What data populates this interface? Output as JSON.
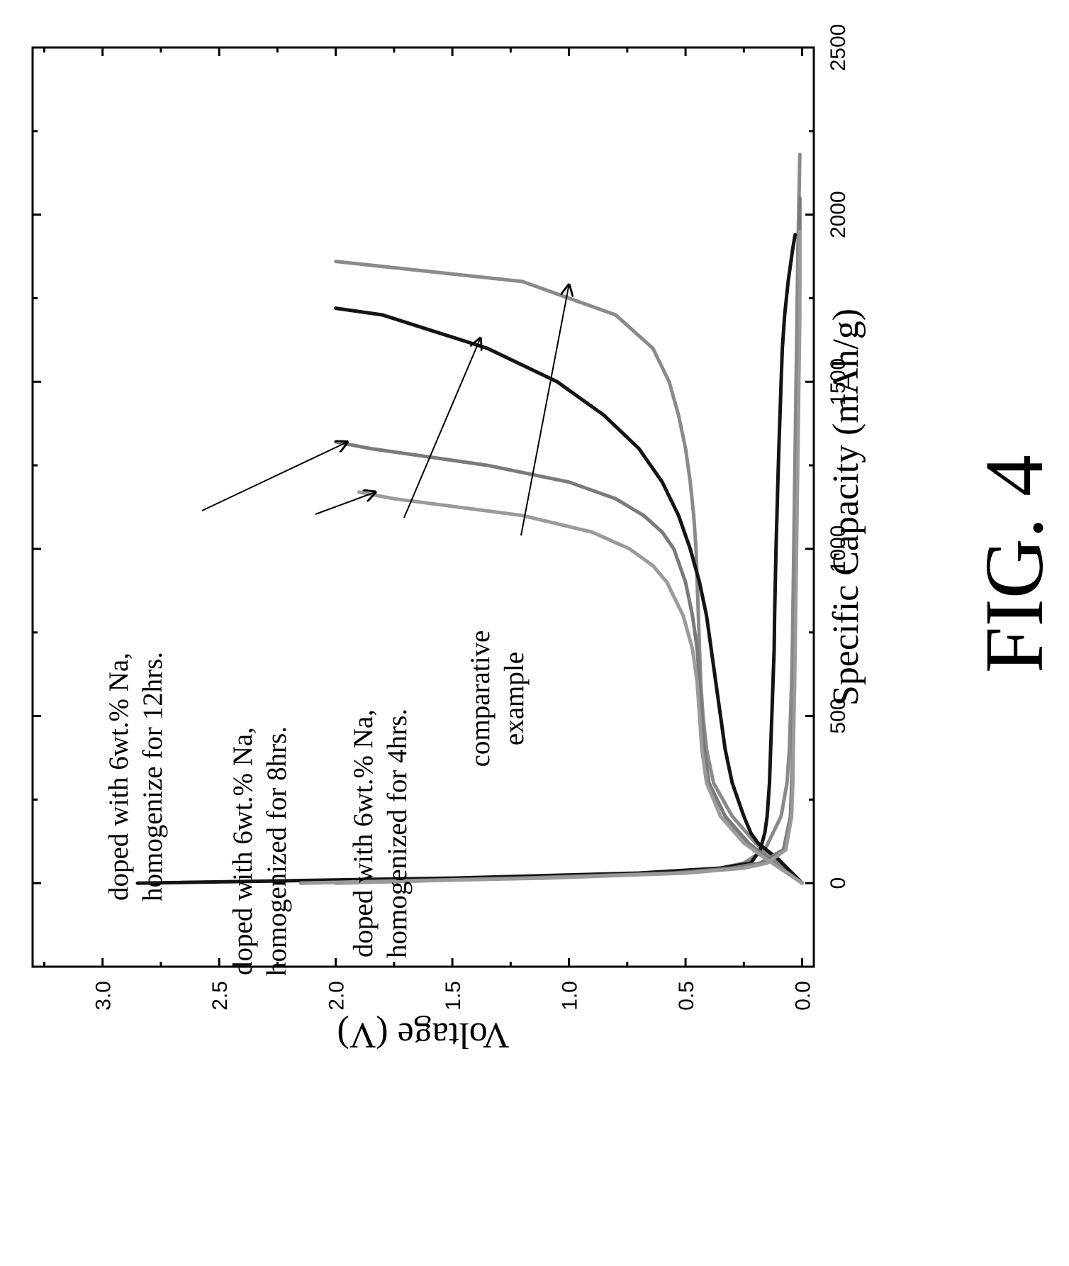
{
  "figure_label": "FIG. 4",
  "chart_data": {
    "type": "line",
    "title": "",
    "xlabel": "Specific Capacity (mAh/g)",
    "ylabel": "Voltage (V)",
    "xlim": [
      -250,
      2500
    ],
    "ylim": [
      -0.05,
      3.3
    ],
    "x_ticks": [
      0,
      500,
      1000,
      1500,
      2000,
      2500
    ],
    "x_tick_labels": [
      "0",
      "500",
      "1000",
      "1500",
      "2000",
      "2500"
    ],
    "y_ticks": [
      0.0,
      0.5,
      1.0,
      1.5,
      2.0,
      2.5,
      3.0
    ],
    "y_tick_labels": [
      "0.0",
      "0.5",
      "1.0",
      "1.5",
      "2.0",
      "2.5",
      "3.0"
    ],
    "grid": false,
    "orientation": "rotated-90-ccw",
    "series": [
      {
        "color": "#8a8a8a",
        "discharge": {
          "x": [
            0,
            15,
            30,
            45,
            60,
            100,
            200,
            300,
            400,
            500,
            600,
            700,
            800,
            900,
            1000,
            1100,
            1200,
            1300,
            1400,
            1500,
            1600,
            1700,
            1800,
            1900,
            2000,
            2100,
            2180
          ],
          "y": [
            2.0,
            1.2,
            0.6,
            0.35,
            0.25,
            0.16,
            0.09,
            0.065,
            0.055,
            0.05,
            0.045,
            0.042,
            0.04,
            0.038,
            0.036,
            0.034,
            0.032,
            0.03,
            0.028,
            0.026,
            0.024,
            0.022,
            0.02,
            0.018,
            0.015,
            0.012,
            0.01
          ]
        },
        "charge": {
          "x": [
            0,
            70,
            120,
            200,
            300,
            400,
            500,
            600,
            700,
            800,
            900,
            1000,
            1100,
            1200,
            1300,
            1400,
            1500,
            1600,
            1700,
            1800,
            1860
          ],
          "y": [
            0.0,
            0.12,
            0.2,
            0.3,
            0.38,
            0.41,
            0.425,
            0.435,
            0.44,
            0.445,
            0.45,
            0.455,
            0.465,
            0.48,
            0.5,
            0.53,
            0.57,
            0.64,
            0.8,
            1.2,
            2.0
          ]
        }
      },
      {
        "color": "#141414",
        "discharge": {
          "x": [
            0,
            15,
            30,
            45,
            60,
            100,
            150,
            200,
            300,
            400,
            500,
            600,
            700,
            800,
            900,
            1000,
            1100,
            1200,
            1300,
            1400,
            1500,
            1600,
            1700,
            1800,
            1900,
            1940
          ],
          "y": [
            2.85,
            1.5,
            0.7,
            0.35,
            0.22,
            0.18,
            0.16,
            0.15,
            0.14,
            0.135,
            0.13,
            0.125,
            0.12,
            0.118,
            0.115,
            0.112,
            0.108,
            0.104,
            0.1,
            0.095,
            0.09,
            0.085,
            0.075,
            0.06,
            0.04,
            0.03
          ]
        },
        "charge": {
          "x": [
            0,
            70,
            120,
            150,
            200,
            300,
            400,
            500,
            600,
            700,
            800,
            900,
            1000,
            1100,
            1200,
            1300,
            1400,
            1500,
            1600,
            1700,
            1720
          ],
          "y": [
            0.0,
            0.1,
            0.19,
            0.22,
            0.25,
            0.3,
            0.33,
            0.35,
            0.37,
            0.39,
            0.41,
            0.44,
            0.48,
            0.53,
            0.6,
            0.7,
            0.85,
            1.05,
            1.35,
            1.8,
            2.0
          ]
        }
      },
      {
        "color": "#7a7a7a",
        "discharge": {
          "x": [
            0,
            15,
            30,
            45,
            60,
            100,
            200,
            300,
            400,
            500,
            600,
            700,
            800,
            900,
            1000,
            1100,
            1200,
            1300,
            1400,
            1500,
            1600,
            1700,
            1800,
            1900,
            2000,
            2050
          ],
          "y": [
            2.15,
            1.2,
            0.55,
            0.3,
            0.18,
            0.08,
            0.05,
            0.045,
            0.04,
            0.038,
            0.035,
            0.033,
            0.03,
            0.028,
            0.026,
            0.024,
            0.022,
            0.02,
            0.018,
            0.016,
            0.014,
            0.012,
            0.01,
            0.01,
            0.01,
            0.01
          ]
        },
        "charge": {
          "x": [
            0,
            70,
            120,
            200,
            300,
            400,
            500,
            600,
            700,
            800,
            900,
            1000,
            1050,
            1100,
            1150,
            1200,
            1250,
            1300,
            1320
          ],
          "y": [
            0.0,
            0.14,
            0.23,
            0.33,
            0.4,
            0.42,
            0.43,
            0.44,
            0.45,
            0.47,
            0.5,
            0.55,
            0.6,
            0.68,
            0.8,
            1.0,
            1.35,
            1.85,
            2.0
          ]
        }
      },
      {
        "color": "#9a9a9a",
        "discharge": {
          "x": [
            0,
            15,
            30,
            45,
            60,
            100,
            200,
            300,
            400,
            500,
            600,
            700,
            800,
            900,
            1000,
            1100,
            1200,
            1300,
            1400,
            1500,
            1600,
            1700,
            1800,
            1900,
            1950
          ],
          "y": [
            2.15,
            1.1,
            0.5,
            0.25,
            0.15,
            0.07,
            0.045,
            0.04,
            0.038,
            0.035,
            0.032,
            0.03,
            0.028,
            0.026,
            0.024,
            0.022,
            0.02,
            0.018,
            0.016,
            0.014,
            0.012,
            0.01,
            0.01,
            0.01,
            0.01
          ]
        },
        "charge": {
          "x": [
            0,
            70,
            120,
            200,
            300,
            400,
            500,
            600,
            700,
            800,
            900,
            950,
            1000,
            1050,
            1100,
            1150,
            1170
          ],
          "y": [
            0.0,
            0.15,
            0.25,
            0.35,
            0.41,
            0.43,
            0.44,
            0.45,
            0.47,
            0.51,
            0.58,
            0.64,
            0.74,
            0.9,
            1.2,
            1.75,
            1.9
          ]
        }
      }
    ],
    "annotations": [
      {
        "lines": [
          "doped with 6wt.% Na,",
          "homogenize for 12hrs."
        ],
        "arrow_to": [
          1320,
          1.95
        ]
      },
      {
        "lines": [
          "doped with 6wt.% Na,",
          "homogenized for 8hrs."
        ],
        "arrow_to": [
          1170,
          1.83
        ]
      },
      {
        "lines": [
          "doped with 6wt.% Na,",
          "homogenized for 4hrs."
        ],
        "arrow_to": [
          1630,
          1.38
        ]
      },
      {
        "lines": [
          "comparative",
          "example"
        ],
        "arrow_to": [
          1790,
          1.0
        ]
      }
    ]
  }
}
